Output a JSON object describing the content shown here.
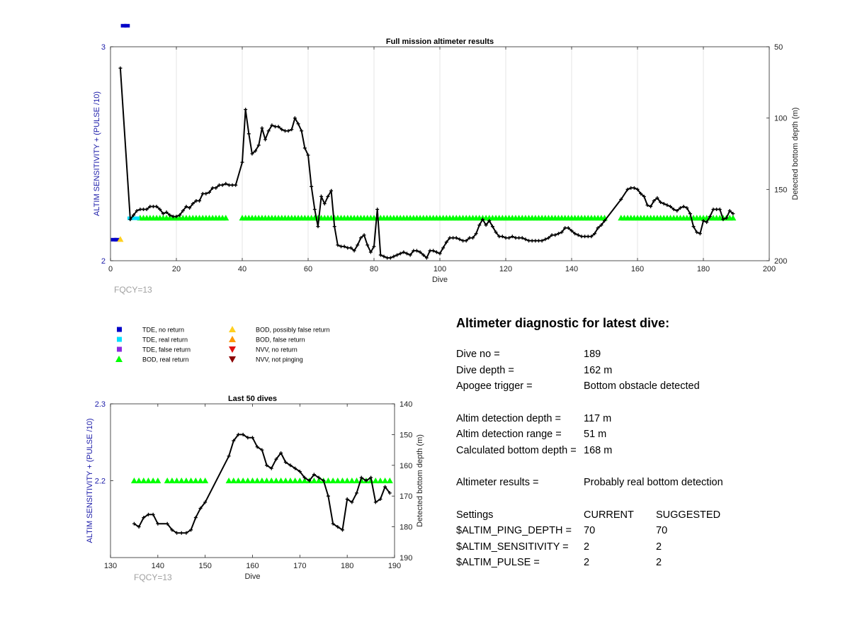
{
  "colors": {
    "axis_blue": "#1a1aa8",
    "fqcy_gray": "#a0a0a0",
    "line": "#000000",
    "tde_no_return": "#0000c8",
    "tde_real_return": "#00e0ff",
    "tde_false_return": "#8a2be2",
    "bod_real_return": "#00ff00",
    "bod_possibly_false": "#ffd020",
    "bod_false": "#ff9900",
    "nvv_no_return": "#e01010",
    "nvv_not_pinging": "#8b0000"
  },
  "legend": {
    "items": [
      {
        "label": "TDE, no return",
        "icon": "square-icon",
        "color": "#0000c8"
      },
      {
        "label": "TDE, real return",
        "icon": "square-icon",
        "color": "#00e0ff"
      },
      {
        "label": "TDE, false return",
        "icon": "square-icon",
        "color": "#8a2be2"
      },
      {
        "label": "BOD, real return",
        "icon": "triangle-up-icon",
        "color": "#00ff00"
      },
      {
        "label": "BOD, possibly false return",
        "icon": "triangle-up-icon",
        "color": "#ffd020"
      },
      {
        "label": "BOD, false return",
        "icon": "triangle-up-icon",
        "color": "#ff9900"
      },
      {
        "label": "NVV, no return",
        "icon": "triangle-down-icon",
        "color": "#e01010"
      },
      {
        "label": "NVV, not pinging",
        "icon": "triangle-down-icon",
        "color": "#8b0000"
      }
    ]
  },
  "chart_data": [
    {
      "type": "scatter",
      "title": "Full mission altimeter results",
      "xlabel": "Dive",
      "ylabel": "ALTIM SENSITIVITY + (PULSE /10)",
      "y2label": "Detected bottom depth (m)",
      "annotation": "FQCY=13",
      "xlim": [
        0,
        200
      ],
      "ylim": [
        2,
        3
      ],
      "y2lim": [
        50,
        200
      ],
      "y2_reversed": true,
      "xticks": [
        0,
        20,
        40,
        60,
        80,
        100,
        120,
        140,
        160,
        180,
        200
      ],
      "yticks": [
        2,
        3
      ],
      "y2ticks": [
        50,
        100,
        150,
        200
      ],
      "grid": true,
      "markers": {
        "tde_no_return": [
          [
            1,
            2.1
          ],
          [
            2,
            2.1
          ],
          [
            4,
            3.1
          ],
          [
            5,
            3.1
          ]
        ],
        "bod_possibly_false": [
          [
            3,
            2.1
          ]
        ],
        "tde_real_return": [
          [
            6,
            2.2
          ],
          [
            7,
            2.2
          ],
          [
            8,
            2.2
          ]
        ],
        "bod_real_return_ranges": [
          [
            9,
            35
          ],
          [
            40,
            150
          ],
          [
            155,
            189
          ]
        ],
        "bod_real_return_value": 2.2
      },
      "bottom_depth": [
        [
          3,
          65
        ],
        [
          6,
          171
        ],
        [
          7,
          168
        ],
        [
          8,
          165
        ],
        [
          9,
          164
        ],
        [
          10,
          164
        ],
        [
          11,
          164
        ],
        [
          12,
          162
        ],
        [
          13,
          162
        ],
        [
          14,
          162
        ],
        [
          15,
          164
        ],
        [
          16,
          167
        ],
        [
          17,
          166
        ],
        [
          18,
          168
        ],
        [
          19,
          169
        ],
        [
          20,
          169
        ],
        [
          21,
          168
        ],
        [
          22,
          165
        ],
        [
          23,
          162
        ],
        [
          24,
          163
        ],
        [
          25,
          160
        ],
        [
          26,
          158
        ],
        [
          27,
          158
        ],
        [
          28,
          153
        ],
        [
          29,
          153
        ],
        [
          30,
          152
        ],
        [
          31,
          149
        ],
        [
          32,
          149
        ],
        [
          33,
          147
        ],
        [
          34,
          147
        ],
        [
          35,
          146
        ],
        [
          36,
          147
        ],
        [
          37,
          147
        ],
        [
          38,
          147
        ],
        [
          40,
          131
        ],
        [
          41,
          94
        ],
        [
          42,
          111
        ],
        [
          43,
          125
        ],
        [
          44,
          123
        ],
        [
          45,
          119
        ],
        [
          46,
          107
        ],
        [
          47,
          115
        ],
        [
          48,
          109
        ],
        [
          49,
          105
        ],
        [
          50,
          106
        ],
        [
          51,
          106
        ],
        [
          52,
          108
        ],
        [
          53,
          109
        ],
        [
          54,
          109
        ],
        [
          55,
          108
        ],
        [
          56,
          100
        ],
        [
          57,
          104
        ],
        [
          58,
          109
        ],
        [
          59,
          121
        ],
        [
          60,
          126
        ],
        [
          61,
          148
        ],
        [
          62,
          164
        ],
        [
          63,
          176
        ],
        [
          64,
          155
        ],
        [
          65,
          160
        ],
        [
          66,
          155
        ],
        [
          67,
          151
        ],
        [
          68,
          176
        ],
        [
          69,
          189
        ],
        [
          70,
          190
        ],
        [
          71,
          190
        ],
        [
          72,
          191
        ],
        [
          73,
          191
        ],
        [
          74,
          193
        ],
        [
          75,
          189
        ],
        [
          76,
          184
        ],
        [
          77,
          182
        ],
        [
          78,
          189
        ],
        [
          79,
          194
        ],
        [
          80,
          190
        ],
        [
          81,
          164
        ],
        [
          82,
          196
        ],
        [
          83,
          197
        ],
        [
          84,
          198
        ],
        [
          85,
          198
        ],
        [
          86,
          197
        ],
        [
          87,
          196
        ],
        [
          88,
          195
        ],
        [
          89,
          194
        ],
        [
          90,
          195
        ],
        [
          91,
          196
        ],
        [
          92,
          193
        ],
        [
          93,
          193
        ],
        [
          94,
          194
        ],
        [
          95,
          196
        ],
        [
          96,
          198
        ],
        [
          97,
          193
        ],
        [
          98,
          193
        ],
        [
          99,
          194
        ],
        [
          100,
          195
        ],
        [
          101,
          191
        ],
        [
          102,
          187
        ],
        [
          103,
          184
        ],
        [
          104,
          184
        ],
        [
          105,
          184
        ],
        [
          106,
          185
        ],
        [
          107,
          186
        ],
        [
          108,
          186
        ],
        [
          109,
          184
        ],
        [
          110,
          184
        ],
        [
          111,
          181
        ],
        [
          112,
          175
        ],
        [
          113,
          171
        ],
        [
          114,
          175
        ],
        [
          115,
          172
        ],
        [
          116,
          176
        ],
        [
          117,
          180
        ],
        [
          118,
          183
        ],
        [
          119,
          183
        ],
        [
          120,
          184
        ],
        [
          121,
          184
        ],
        [
          122,
          183
        ],
        [
          123,
          184
        ],
        [
          124,
          184
        ],
        [
          125,
          184
        ],
        [
          126,
          185
        ],
        [
          127,
          186
        ],
        [
          128,
          186
        ],
        [
          129,
          186
        ],
        [
          130,
          186
        ],
        [
          131,
          186
        ],
        [
          132,
          185
        ],
        [
          133,
          184
        ],
        [
          134,
          182
        ],
        [
          135,
          182
        ],
        [
          136,
          181
        ],
        [
          137,
          180
        ],
        [
          138,
          177
        ],
        [
          139,
          177
        ],
        [
          140,
          179
        ],
        [
          141,
          181
        ],
        [
          142,
          182
        ],
        [
          143,
          183
        ],
        [
          144,
          183
        ],
        [
          145,
          183
        ],
        [
          146,
          183
        ],
        [
          147,
          181
        ],
        [
          148,
          177
        ],
        [
          149,
          175
        ],
        [
          150,
          172
        ],
        [
          155,
          157
        ],
        [
          157,
          150
        ],
        [
          158,
          149
        ],
        [
          159,
          149
        ],
        [
          160,
          150
        ],
        [
          161,
          153
        ],
        [
          162,
          155
        ],
        [
          163,
          161
        ],
        [
          164,
          162
        ],
        [
          165,
          158
        ],
        [
          166,
          156
        ],
        [
          167,
          159
        ],
        [
          168,
          160
        ],
        [
          169,
          161
        ],
        [
          170,
          162
        ],
        [
          171,
          164
        ],
        [
          172,
          165
        ],
        [
          173,
          163
        ],
        [
          174,
          162
        ],
        [
          175,
          163
        ],
        [
          176,
          167
        ],
        [
          177,
          176
        ],
        [
          178,
          180
        ],
        [
          179,
          181
        ],
        [
          180,
          172
        ],
        [
          181,
          173
        ],
        [
          182,
          169
        ],
        [
          183,
          164
        ],
        [
          184,
          164
        ],
        [
          185,
          164
        ],
        [
          186,
          171
        ],
        [
          187,
          170
        ],
        [
          188,
          165
        ],
        [
          189,
          167
        ]
      ]
    },
    {
      "type": "scatter",
      "title": "Last 50 dives",
      "xlabel": "Dive",
      "ylabel": "ALTIM SENSITIVITY + (PULSE /10)",
      "y2label": "Detected bottom depth (m)",
      "annotation": "FQCY=13",
      "xlim": [
        130,
        190
      ],
      "ylim": [
        2.1,
        2.3
      ],
      "y2lim": [
        140,
        190
      ],
      "y2_reversed": true,
      "xticks": [
        130,
        140,
        150,
        160,
        170,
        180,
        190
      ],
      "yticks": [
        2.2,
        2.3
      ],
      "y2ticks": [
        140,
        150,
        160,
        170,
        180,
        190
      ],
      "grid": false,
      "markers": {
        "bod_real_return_ranges": [
          [
            135,
            140
          ],
          [
            142,
            150
          ],
          [
            155,
            189
          ]
        ],
        "bod_real_return_value": 2.2
      },
      "bottom_depth": [
        [
          135,
          179
        ],
        [
          136,
          180
        ],
        [
          137,
          177
        ],
        [
          138,
          176
        ],
        [
          139,
          176
        ],
        [
          140,
          179
        ],
        [
          142,
          179
        ],
        [
          143,
          181
        ],
        [
          144,
          182
        ],
        [
          145,
          182
        ],
        [
          146,
          182
        ],
        [
          147,
          181
        ],
        [
          148,
          177
        ],
        [
          149,
          174
        ],
        [
          150,
          172
        ],
        [
          155,
          157
        ],
        [
          156,
          152
        ],
        [
          157,
          150
        ],
        [
          158,
          150
        ],
        [
          159,
          151
        ],
        [
          160,
          151
        ],
        [
          161,
          154
        ],
        [
          162,
          155
        ],
        [
          163,
          160
        ],
        [
          164,
          161
        ],
        [
          165,
          158
        ],
        [
          166,
          156
        ],
        [
          167,
          159
        ],
        [
          168,
          160
        ],
        [
          169,
          161
        ],
        [
          170,
          162
        ],
        [
          171,
          164
        ],
        [
          172,
          165
        ],
        [
          173,
          163
        ],
        [
          174,
          164
        ],
        [
          175,
          165
        ],
        [
          176,
          170
        ],
        [
          177,
          179
        ],
        [
          178,
          180
        ],
        [
          179,
          181
        ],
        [
          180,
          171
        ],
        [
          181,
          172
        ],
        [
          182,
          169
        ],
        [
          183,
          164
        ],
        [
          184,
          165
        ],
        [
          185,
          164
        ],
        [
          186,
          172
        ],
        [
          187,
          171
        ],
        [
          188,
          167
        ],
        [
          189,
          169
        ]
      ]
    }
  ],
  "diagnostic": {
    "title": "Altimeter diagnostic for latest dive:",
    "dive_no_label": "Dive no =",
    "dive_no_value": "189",
    "dive_depth_label": "Dive depth =",
    "dive_depth_value": "162 m",
    "apogee_label": "Apogee trigger =",
    "apogee_value": "Bottom obstacle detected",
    "detect_depth_label": "Altim detection depth =",
    "detect_depth_value": "117 m",
    "detect_range_label": "Altim detection range =",
    "detect_range_value": "51 m",
    "calc_depth_label": "Calculated bottom depth =",
    "calc_depth_value": "168 m",
    "results_label": "Altimeter results =",
    "results_value": "Probably real bottom detection",
    "settings_label": "Settings",
    "current_header": "CURRENT",
    "suggested_header": "SUGGESTED",
    "settings": [
      {
        "name": "$ALTIM_PING_DEPTH =",
        "current": "70",
        "suggested": "70"
      },
      {
        "name": "$ALTIM_SENSITIVITY =",
        "current": "2",
        "suggested": "2"
      },
      {
        "name": "$ALTIM_PULSE =",
        "current": "2",
        "suggested": "2"
      }
    ]
  }
}
